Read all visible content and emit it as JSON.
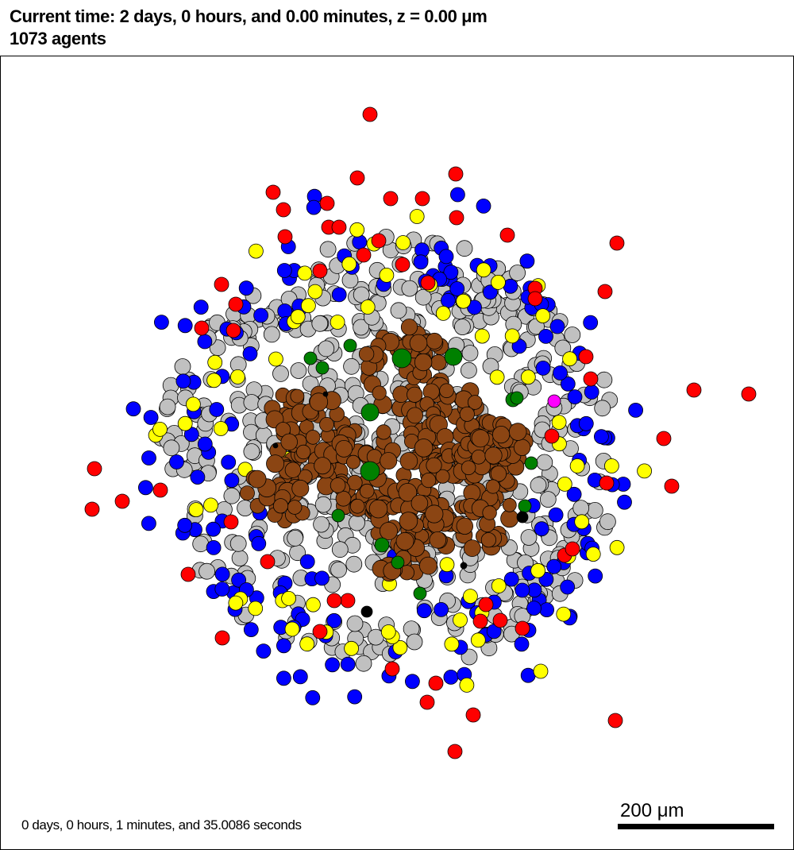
{
  "header": {
    "line1": "Current time: 2 days, 0 hours, and 0.00 minutes, z = 0.00 μm",
    "line2": "1073 agents"
  },
  "footer": {
    "elapsed": "0 days, 0 hours, 1 minutes, and 35.0086 seconds",
    "scale_label": "200 μm"
  },
  "colors": {
    "grey": "#c0c0c0",
    "blue": "#0000ff",
    "red": "#ff0000",
    "yellow": "#ffff00",
    "brown": "#8b4513",
    "green": "#008000",
    "black": "#000000",
    "magenta": "#ff00ff",
    "outline": "#000000"
  }
}
